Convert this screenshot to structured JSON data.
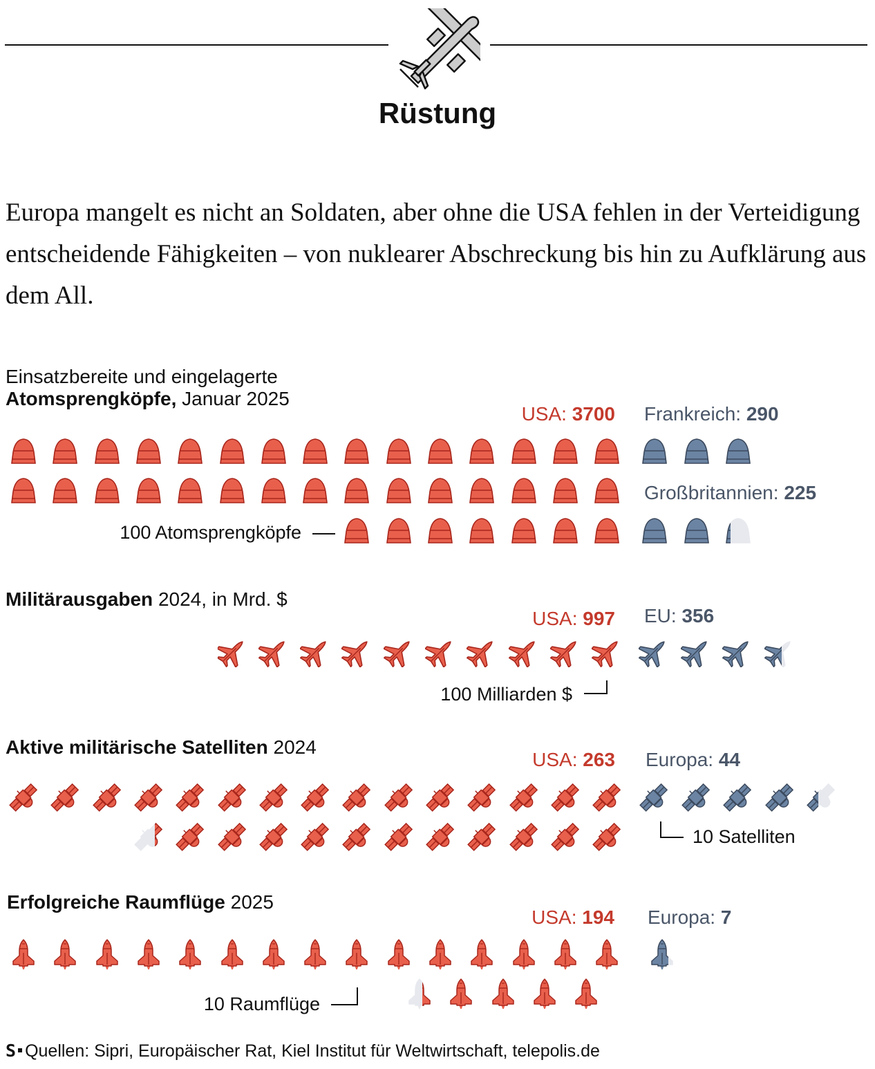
{
  "header": {
    "title": "Rüstung",
    "icon": "drone-icon"
  },
  "intro": "Europa mangelt es nicht an Soldaten, aber ohne die USA fehlen in der Verteidigung entscheidende Fähigkeiten – von nuklearer Abschreckung bis hin zu Aufklärung aus dem All.",
  "colors": {
    "usa": "#e8604c",
    "usa_stroke": "#a8261c",
    "europe": "#6b84a3",
    "europe_stroke": "#3c4a5e",
    "empty": "#e7e9ee",
    "usa_text": "#c43a2c",
    "europe_text": "#4a5668"
  },
  "chart_data": [
    {
      "type": "pictogram",
      "icon": "warhead-icon",
      "title_line1": "Einsatzbereite und eingelagerte",
      "title_bold": "Atomsprengköpfe,",
      "title_rest": " Januar 2025",
      "unit_label": "100 Atomsprengköpfe",
      "unit": 100,
      "series": [
        {
          "name": "USA:",
          "value": 3700,
          "value_label": "3700"
        },
        {
          "name": "Frankreich:",
          "value": 290,
          "value_label": "290"
        },
        {
          "name": "Großbritannien:",
          "value": 225,
          "value_label": "225"
        }
      ]
    },
    {
      "type": "pictogram",
      "icon": "fighter-jet-icon",
      "title_bold": "Militärausgaben",
      "title_rest": " 2024, in Mrd. $",
      "unit_label": "100 Milliarden $",
      "unit": 100,
      "series": [
        {
          "name": "USA:",
          "value": 997,
          "value_label": "997"
        },
        {
          "name": "EU:",
          "value": 356,
          "value_label": "356"
        }
      ]
    },
    {
      "type": "pictogram",
      "icon": "satellite-icon",
      "title_bold": "Aktive militärische Satelliten",
      "title_rest": " 2024",
      "unit_label": "10 Satelliten",
      "unit": 10,
      "series": [
        {
          "name": "USA:",
          "value": 263,
          "value_label": "263"
        },
        {
          "name": "Europa:",
          "value": 44,
          "value_label": "44"
        }
      ]
    },
    {
      "type": "pictogram",
      "icon": "rocket-icon",
      "title_bold": "Erfolgreiche Raumflüge",
      "title_rest": " 2025",
      "unit_label": "10 Raumflüge",
      "unit": 10,
      "series": [
        {
          "name": "USA:",
          "value": 194,
          "value_label": "194"
        },
        {
          "name": "Europa:",
          "value": 7,
          "value_label": "7"
        }
      ]
    }
  ],
  "footer": {
    "logo": "S",
    "text": "Quellen: Sipri, Europäischer Rat, Kiel Institut für Weltwirtschaft, telepolis.de"
  }
}
